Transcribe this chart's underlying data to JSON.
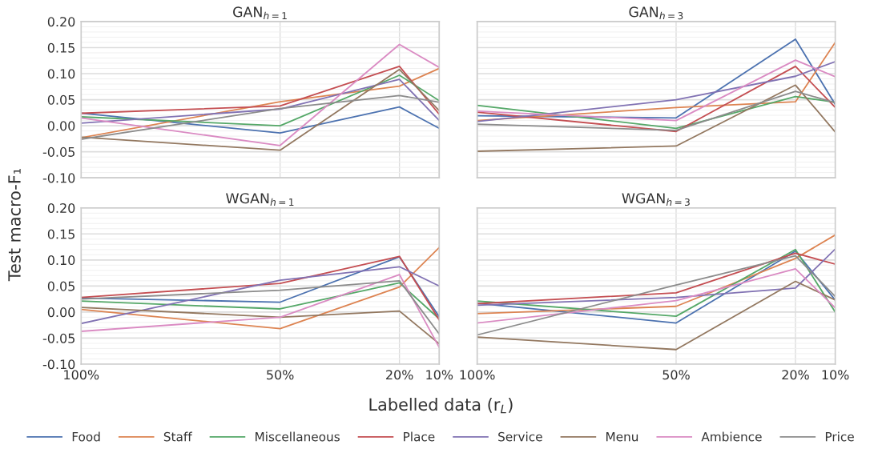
{
  "chart_data": [
    {
      "type": "line",
      "title": "GAN$_{h=1}$",
      "ylabel": "Test macro-F₁",
      "xlabel": "Labelled data (r$_{L}$)",
      "legend": "bottom",
      "grid": true,
      "tick_labels": "y",
      "x": [
        100,
        50,
        20,
        10
      ],
      "xlim": [
        100,
        10
      ],
      "xticks": [
        {
          "value": 100,
          "label": null
        },
        {
          "value": 50,
          "label": null
        },
        {
          "value": 20,
          "label": null
        },
        {
          "value": 10,
          "label": null
        }
      ],
      "ylim": [
        -0.1,
        0.2
      ],
      "yticks": [
        {
          "value": -0.1,
          "label": "-0.10"
        },
        {
          "value": -0.09,
          "label": null
        },
        {
          "value": -0.08,
          "label": null
        },
        {
          "value": -0.07,
          "label": null
        },
        {
          "value": -0.06,
          "label": null
        },
        {
          "value": -0.05,
          "label": "-0.05"
        },
        {
          "value": -0.04,
          "label": null
        },
        {
          "value": -0.03,
          "label": null
        },
        {
          "value": -0.02,
          "label": null
        },
        {
          "value": -0.01,
          "label": null
        },
        {
          "value": 0,
          "label": "0.00"
        },
        {
          "value": 0.01,
          "label": null
        },
        {
          "value": 0.02,
          "label": null
        },
        {
          "value": 0.03,
          "label": null
        },
        {
          "value": 0.04,
          "label": null
        },
        {
          "value": 0.05,
          "label": "0.05"
        },
        {
          "value": 0.06,
          "label": null
        },
        {
          "value": 0.07,
          "label": null
        },
        {
          "value": 0.08,
          "label": null
        },
        {
          "value": 0.09,
          "label": null
        },
        {
          "value": 0.1,
          "label": "0.10"
        },
        {
          "value": 0.11,
          "label": null
        },
        {
          "value": 0.12,
          "label": null
        },
        {
          "value": 0.13,
          "label": null
        },
        {
          "value": 0.14,
          "label": null
        },
        {
          "value": 0.15,
          "label": "0.15"
        },
        {
          "value": 0.16,
          "label": null
        },
        {
          "value": 0.17,
          "label": null
        },
        {
          "value": 0.18,
          "label": null
        },
        {
          "value": 0.19,
          "label": null
        },
        {
          "value": 0.2,
          "label": "0.20"
        }
      ],
      "series": [
        {
          "name": "Food",
          "color": "#4c72b0",
          "values": [
            0.024,
            -0.014,
            0.036,
            -0.005
          ]
        },
        {
          "name": "Staff",
          "color": "#dd8452",
          "values": [
            -0.023,
            0.046,
            0.076,
            0.11
          ]
        },
        {
          "name": "Miscellaneous",
          "color": "#55a868",
          "values": [
            0.017,
            0.0,
            0.097,
            0.048
          ]
        },
        {
          "name": "Place",
          "color": "#c44e52",
          "values": [
            0.024,
            0.038,
            0.114,
            0.022
          ]
        },
        {
          "name": "Service",
          "color": "#8172b3",
          "values": [
            0.005,
            0.032,
            0.089,
            0.01
          ]
        },
        {
          "name": "Menu",
          "color": "#937860",
          "values": [
            -0.022,
            -0.047,
            0.108,
            0.029
          ]
        },
        {
          "name": "Ambience",
          "color": "#da8bc3",
          "values": [
            0.015,
            -0.038,
            0.156,
            0.112
          ]
        },
        {
          "name": "Price",
          "color": "#8c8c8c",
          "values": [
            -0.026,
            0.033,
            0.058,
            0.045
          ]
        }
      ]
    },
    {
      "type": "line",
      "title": "GAN$_{h=3}$",
      "grid": true,
      "tick_labels": false,
      "x": [
        100,
        50,
        20,
        10
      ],
      "xlim": [
        100,
        10
      ],
      "xticks": [
        {
          "value": 100,
          "label": null
        },
        {
          "value": 50,
          "label": null
        },
        {
          "value": 20,
          "label": null
        },
        {
          "value": 10,
          "label": null
        }
      ],
      "ylim": [
        -0.1,
        0.2
      ],
      "yticks": [
        {
          "value": -0.1,
          "label": null
        },
        {
          "value": -0.09,
          "label": null
        },
        {
          "value": -0.08,
          "label": null
        },
        {
          "value": -0.07,
          "label": null
        },
        {
          "value": -0.06,
          "label": null
        },
        {
          "value": -0.05,
          "label": null
        },
        {
          "value": -0.04,
          "label": null
        },
        {
          "value": -0.03,
          "label": null
        },
        {
          "value": -0.02,
          "label": null
        },
        {
          "value": -0.01,
          "label": null
        },
        {
          "value": 0,
          "label": null
        },
        {
          "value": 0.01,
          "label": null
        },
        {
          "value": 0.02,
          "label": null
        },
        {
          "value": 0.03,
          "label": null
        },
        {
          "value": 0.04,
          "label": null
        },
        {
          "value": 0.05,
          "label": null
        },
        {
          "value": 0.06,
          "label": null
        },
        {
          "value": 0.07,
          "label": null
        },
        {
          "value": 0.08,
          "label": null
        },
        {
          "value": 0.09,
          "label": null
        },
        {
          "value": 0.1,
          "label": null
        },
        {
          "value": 0.11,
          "label": null
        },
        {
          "value": 0.12,
          "label": null
        },
        {
          "value": 0.13,
          "label": null
        },
        {
          "value": 0.14,
          "label": null
        },
        {
          "value": 0.15,
          "label": null
        },
        {
          "value": 0.16,
          "label": null
        },
        {
          "value": 0.17,
          "label": null
        },
        {
          "value": 0.18,
          "label": null
        },
        {
          "value": 0.19,
          "label": null
        },
        {
          "value": 0.2,
          "label": null
        }
      ],
      "series": [
        {
          "color": "#4c72b0",
          "values": [
            0.019,
            0.015,
            0.166,
            0.041
          ]
        },
        {
          "color": "#dd8452",
          "values": [
            0.01,
            0.035,
            0.046,
            0.16
          ]
        },
        {
          "color": "#55a868",
          "values": [
            0.039,
            -0.005,
            0.056,
            0.045
          ]
        },
        {
          "color": "#c44e52",
          "values": [
            0.026,
            -0.011,
            0.114,
            0.035
          ]
        },
        {
          "color": "#8172b3",
          "values": [
            0.008,
            0.05,
            0.095,
            0.123
          ]
        },
        {
          "color": "#937860",
          "values": [
            -0.049,
            -0.039,
            0.078,
            -0.012
          ]
        },
        {
          "color": "#da8bc3",
          "values": [
            0.028,
            0.01,
            0.126,
            0.094
          ]
        },
        {
          "color": "#8c8c8c",
          "values": [
            0.003,
            -0.009,
            0.066,
            0.044
          ]
        }
      ]
    },
    {
      "type": "line",
      "title": "WGAN$_{h=1}$",
      "grid": true,
      "x": [
        100,
        50,
        20,
        10
      ],
      "xlim": [
        100,
        10
      ],
      "xticks": [
        {
          "value": 100,
          "label": "100%"
        },
        {
          "value": 50,
          "label": "50%"
        },
        {
          "value": 20,
          "label": "20%"
        },
        {
          "value": 10,
          "label": "10%"
        }
      ],
      "ylim": [
        -0.1,
        0.2
      ],
      "yticks": [
        {
          "value": -0.1,
          "label": "-0.10"
        },
        {
          "value": -0.09,
          "label": null
        },
        {
          "value": -0.08,
          "label": null
        },
        {
          "value": -0.07,
          "label": null
        },
        {
          "value": -0.06,
          "label": null
        },
        {
          "value": -0.05,
          "label": "-0.05"
        },
        {
          "value": -0.04,
          "label": null
        },
        {
          "value": -0.03,
          "label": null
        },
        {
          "value": -0.02,
          "label": null
        },
        {
          "value": -0.01,
          "label": null
        },
        {
          "value": 0,
          "label": "0.00"
        },
        {
          "value": 0.01,
          "label": null
        },
        {
          "value": 0.02,
          "label": null
        },
        {
          "value": 0.03,
          "label": null
        },
        {
          "value": 0.04,
          "label": null
        },
        {
          "value": 0.05,
          "label": "0.05"
        },
        {
          "value": 0.06,
          "label": null
        },
        {
          "value": 0.07,
          "label": null
        },
        {
          "value": 0.08,
          "label": null
        },
        {
          "value": 0.09,
          "label": null
        },
        {
          "value": 0.1,
          "label": "0.10"
        },
        {
          "value": 0.11,
          "label": null
        },
        {
          "value": 0.12,
          "label": null
        },
        {
          "value": 0.13,
          "label": null
        },
        {
          "value": 0.14,
          "label": null
        },
        {
          "value": 0.15,
          "label": "0.15"
        },
        {
          "value": 0.16,
          "label": null
        },
        {
          "value": 0.17,
          "label": null
        },
        {
          "value": 0.18,
          "label": null
        },
        {
          "value": 0.19,
          "label": null
        },
        {
          "value": 0.2,
          "label": "0.20"
        }
      ],
      "series": [
        {
          "color": "#4c72b0",
          "values": [
            0.027,
            0.019,
            0.106,
            -0.009
          ]
        },
        {
          "color": "#dd8452",
          "values": [
            0.005,
            -0.032,
            0.048,
            0.124
          ]
        },
        {
          "color": "#55a868",
          "values": [
            0.021,
            0.006,
            0.056,
            -0.013
          ]
        },
        {
          "color": "#c44e52",
          "values": [
            0.028,
            0.055,
            0.107,
            -0.015
          ]
        },
        {
          "color": "#8172b3",
          "values": [
            -0.022,
            0.061,
            0.087,
            0.05
          ]
        },
        {
          "color": "#937860",
          "values": [
            0.009,
            -0.01,
            0.002,
            -0.061
          ]
        },
        {
          "color": "#da8bc3",
          "values": [
            -0.037,
            -0.01,
            0.072,
            -0.068
          ]
        },
        {
          "color": "#8c8c8c",
          "values": [
            0.025,
            0.042,
            0.06,
            -0.042
          ]
        }
      ]
    },
    {
      "type": "line",
      "title": "WGAN$_{h=3}$",
      "grid": true,
      "tick_labels": "x",
      "x": [
        100,
        50,
        20,
        10
      ],
      "xlim": [
        100,
        10
      ],
      "xticks": [
        {
          "value": 100,
          "label": "100%"
        },
        {
          "value": 50,
          "label": "50%"
        },
        {
          "value": 20,
          "label": "20%"
        },
        {
          "value": 10,
          "label": "10%"
        }
      ],
      "ylim": [
        -0.1,
        0.2
      ],
      "yticks": [
        {
          "value": -0.1,
          "label": null
        },
        {
          "value": -0.09,
          "label": null
        },
        {
          "value": -0.08,
          "label": null
        },
        {
          "value": -0.07,
          "label": null
        },
        {
          "value": -0.06,
          "label": null
        },
        {
          "value": -0.05,
          "label": null
        },
        {
          "value": -0.04,
          "label": null
        },
        {
          "value": -0.03,
          "label": null
        },
        {
          "value": -0.02,
          "label": null
        },
        {
          "value": -0.01,
          "label": null
        },
        {
          "value": 0,
          "label": null
        },
        {
          "value": 0.01,
          "label": null
        },
        {
          "value": 0.02,
          "label": null
        },
        {
          "value": 0.03,
          "label": null
        },
        {
          "value": 0.04,
          "label": null
        },
        {
          "value": 0.05,
          "label": null
        },
        {
          "value": 0.06,
          "label": null
        },
        {
          "value": 0.07,
          "label": null
        },
        {
          "value": 0.08,
          "label": null
        },
        {
          "value": 0.09,
          "label": null
        },
        {
          "value": 0.1,
          "label": null
        },
        {
          "value": 0.11,
          "label": null
        },
        {
          "value": 0.12,
          "label": null
        },
        {
          "value": 0.13,
          "label": null
        },
        {
          "value": 0.14,
          "label": null
        },
        {
          "value": 0.15,
          "label": null
        },
        {
          "value": 0.16,
          "label": null
        },
        {
          "value": 0.17,
          "label": null
        },
        {
          "value": 0.18,
          "label": null
        },
        {
          "value": 0.19,
          "label": null
        },
        {
          "value": 0.2,
          "label": null
        }
      ],
      "series": [
        {
          "color": "#4c72b0",
          "values": [
            0.017,
            -0.021,
            0.117,
            0.023
          ]
        },
        {
          "color": "#dd8452",
          "values": [
            -0.003,
            0.011,
            0.103,
            0.148
          ]
        },
        {
          "color": "#55a868",
          "values": [
            0.021,
            -0.008,
            0.12,
            0.0
          ]
        },
        {
          "color": "#c44e52",
          "values": [
            0.016,
            0.037,
            0.113,
            0.092
          ]
        },
        {
          "color": "#8172b3",
          "values": [
            0.013,
            0.028,
            0.046,
            0.121
          ]
        },
        {
          "color": "#937860",
          "values": [
            -0.048,
            -0.072,
            0.059,
            0.023
          ]
        },
        {
          "color": "#da8bc3",
          "values": [
            -0.021,
            0.022,
            0.083,
            0.008
          ]
        },
        {
          "color": "#8c8c8c",
          "values": [
            -0.044,
            0.052,
            0.108,
            0.03
          ]
        }
      ]
    }
  ]
}
